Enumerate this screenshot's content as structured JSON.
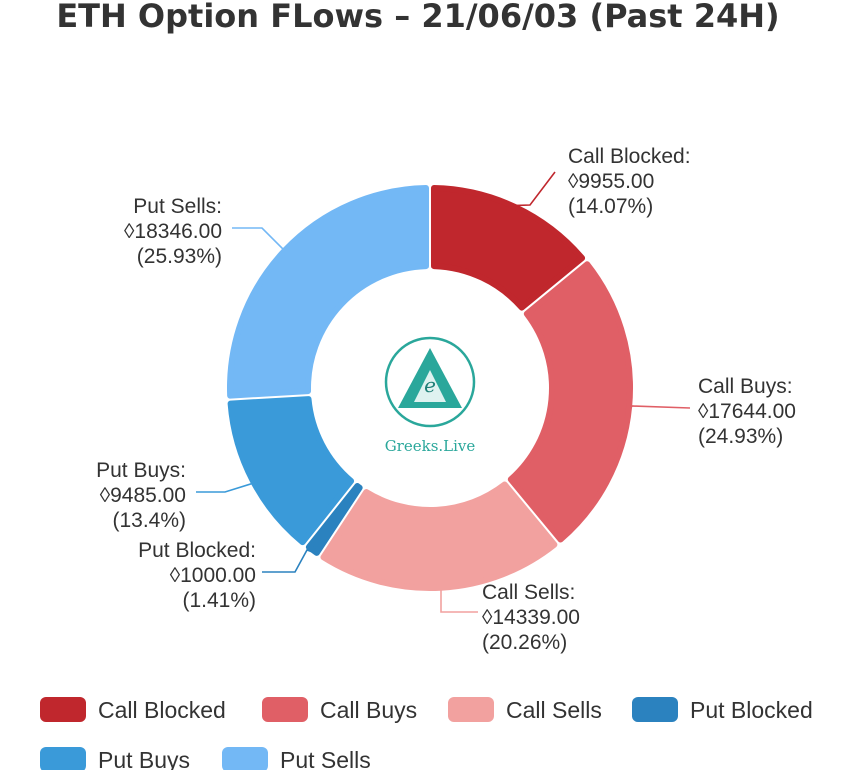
{
  "chart_data": {
    "type": "pie",
    "title": "ETH Option FLows – 21/06/03  (Past 24H)",
    "currency_symbol": "◊",
    "legend_position": "bottom",
    "series": [
      {
        "name": "Call Blocked",
        "value": 9955.0,
        "value_label": "◊9955.00",
        "percent_label": "(14.07%)",
        "color": "#c0272d"
      },
      {
        "name": "Call Buys",
        "value": 17644.0,
        "value_label": "◊17644.00",
        "percent_label": "(24.93%)",
        "color": "#e05f66"
      },
      {
        "name": "Call Sells",
        "value": 14339.0,
        "value_label": "◊14339.00",
        "percent_label": "(20.26%)",
        "color": "#f2a19f"
      },
      {
        "name": "Put Blocked",
        "value": 1000.0,
        "value_label": "◊1000.00",
        "percent_label": "(1.41%)",
        "color": "#2b82bf"
      },
      {
        "name": "Put Buys",
        "value": 9485.0,
        "value_label": "◊9485.00",
        "percent_label": "(13.4%)",
        "color": "#3a9ad9"
      },
      {
        "name": "Put Sells",
        "value": 18346.0,
        "value_label": "◊18346.00",
        "percent_label": "(25.93%)",
        "color": "#73b8f5"
      }
    ]
  },
  "logo": {
    "text": "Greeks.Live",
    "color": "#2aa79b"
  }
}
